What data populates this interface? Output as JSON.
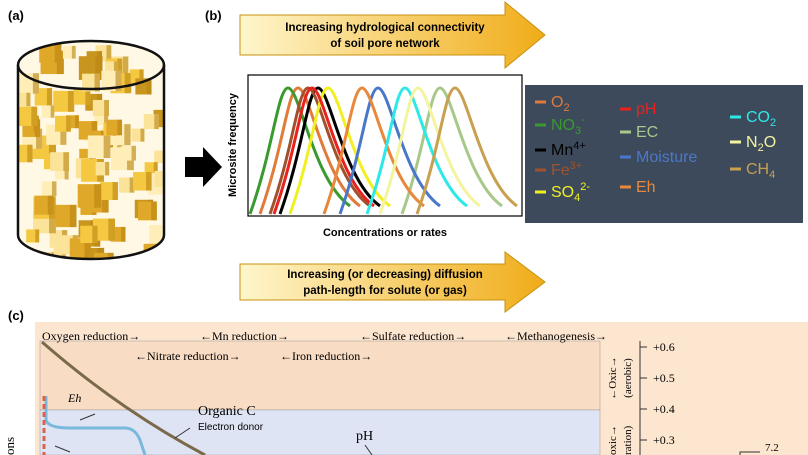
{
  "panels": {
    "a": "(a)",
    "b": "(b)",
    "c": "(c)"
  },
  "arrow_top": {
    "line1": "Increasing hydrological connectivity",
    "line2": "of soil pore network"
  },
  "arrow_bottom": {
    "line1": "Increasing (or decreasing) diffusion",
    "line2": "path-length for solute (or gas)"
  },
  "plot": {
    "y_label": "Microsite frequency",
    "x_label": "Concentrations or rates"
  },
  "legend": [
    {
      "base": "O",
      "sub": "2",
      "color": "#e07b39"
    },
    {
      "base": "NO",
      "sub": "3",
      "sup": "-",
      "color": "#3a9a2e"
    },
    {
      "base": "Mn",
      "sup": "4+",
      "color": "#000000"
    },
    {
      "base": "Fe",
      "sup": "3+",
      "color": "#a0522d"
    },
    {
      "base": "SO",
      "sub": "4",
      "sup": "2-",
      "color": "#f0f020"
    },
    {
      "base": "pH",
      "color": "#e8231e"
    },
    {
      "base": "EC",
      "color": "#a8c88a"
    },
    {
      "base": "Moisture",
      "color": "#4a78c8"
    },
    {
      "base": "Eh",
      "color": "#e8883a"
    },
    {
      "base": "CO",
      "sub": "2",
      "color": "#2ee8e8"
    },
    {
      "base": "N",
      "sub": "2",
      "base2": "O",
      "color": "#f4f4a0"
    },
    {
      "base": "CH",
      "sub": "4",
      "color": "#c8a050"
    }
  ],
  "redox": {
    "row1": [
      "Oxygen reduction→",
      "←Mn reduction→",
      "←Sulfate reduction→",
      "←Methanogenesis→"
    ],
    "row2": [
      "←Nitrate reduction→",
      "←Iron reduction→"
    ],
    "axis": [
      "+0.6",
      "+0.5",
      "+0.4",
      "+0.3"
    ],
    "oxic": "←Oxic→",
    "aerobic": "(aerobic)",
    "anoxic": "oxic→",
    "ration": "ration)",
    "eh": "Eh",
    "organic": "Organic C",
    "donor": "Electron donor",
    "ph": "pH",
    "ph_value": "7.2",
    "cut": "ons"
  }
}
